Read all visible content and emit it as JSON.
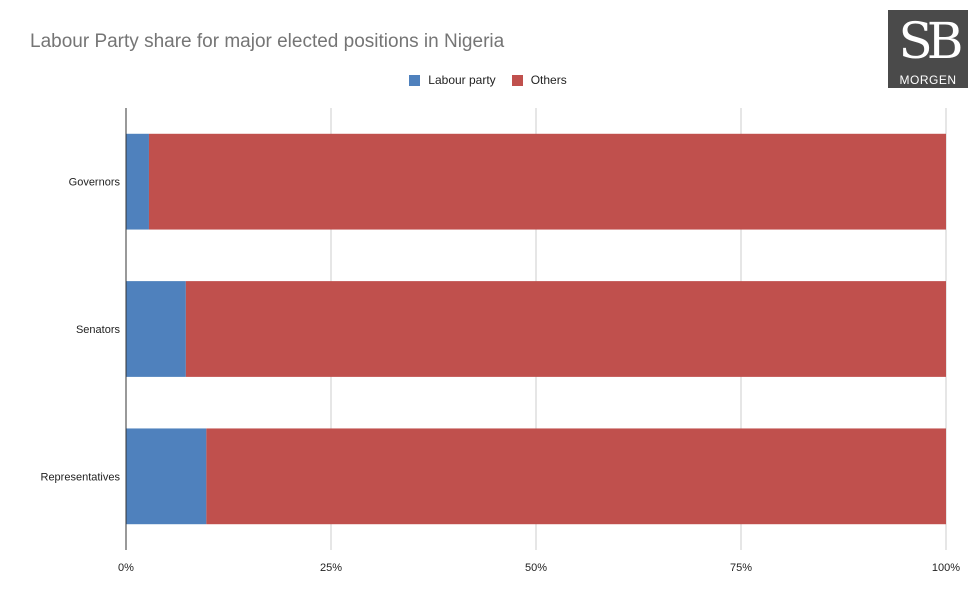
{
  "chart_data": {
    "type": "bar",
    "orientation": "horizontal",
    "stacked": true,
    "title": "Labour Party share for major elected positions in Nigeria",
    "categories": [
      "Governors",
      "Senators",
      "Representatives"
    ],
    "series": [
      {
        "name": "Labour party",
        "color": "#4f81bd",
        "values": [
          2.8,
          7.3,
          9.8
        ]
      },
      {
        "name": "Others",
        "color": "#c0504d",
        "values": [
          97.2,
          92.7,
          90.2
        ]
      }
    ],
    "xlim": [
      0,
      100
    ],
    "xticks": [
      0,
      25,
      50,
      75,
      100
    ],
    "xtick_labels": [
      "0%",
      "25%",
      "50%",
      "75%",
      "100%"
    ],
    "grid": true,
    "legend_position": "top-center",
    "xlabel": "",
    "ylabel": ""
  },
  "logo": {
    "mark": "SB",
    "word": "MORGEN"
  }
}
